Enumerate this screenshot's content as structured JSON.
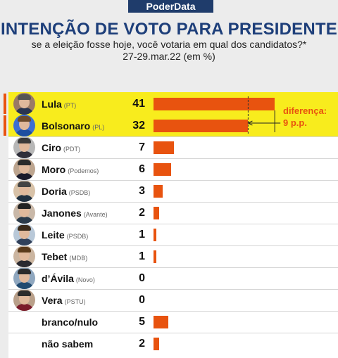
{
  "header": {
    "brand": "PoderData",
    "title": "INTENÇÃO DE VOTO PARA PRESIDENTE",
    "subtitle_line1": "se a eleição fosse hoje, você votaria em qual dos candidatos?*",
    "subtitle_line2": "27-29.mar.22 (em %)"
  },
  "annotation": {
    "line1": "diferença:",
    "line2": "9 p.p."
  },
  "colors": {
    "bar": "#e8530f",
    "highlight": "#f8ec1d",
    "title": "#1e3f7a",
    "brand_bg": "#1f3c6b"
  },
  "chart_data": {
    "type": "bar",
    "orientation": "horizontal",
    "title": "INTENÇÃO DE VOTO PARA PRESIDENTE",
    "unit": "%",
    "xlim": [
      0,
      42
    ],
    "categories": [
      "Lula",
      "Bolsonaro",
      "Ciro",
      "Moro",
      "Doria",
      "Janones",
      "Leite",
      "Tebet",
      "d’Ávila",
      "Vera",
      "branco/nulo",
      "não sabem"
    ],
    "parties": [
      "(PT)",
      "(PL)",
      "(PDT)",
      "(Podemos)",
      "(PSDB)",
      "(Avante)",
      "(PSDB)",
      "(MDB)",
      "(Novo)",
      "(PSTU)",
      "",
      ""
    ],
    "values": [
      41,
      32,
      7,
      6,
      3,
      2,
      1,
      1,
      0,
      0,
      5,
      2
    ],
    "highlighted": [
      "Lula",
      "Bolsonaro"
    ],
    "difference_pp": 9
  }
}
